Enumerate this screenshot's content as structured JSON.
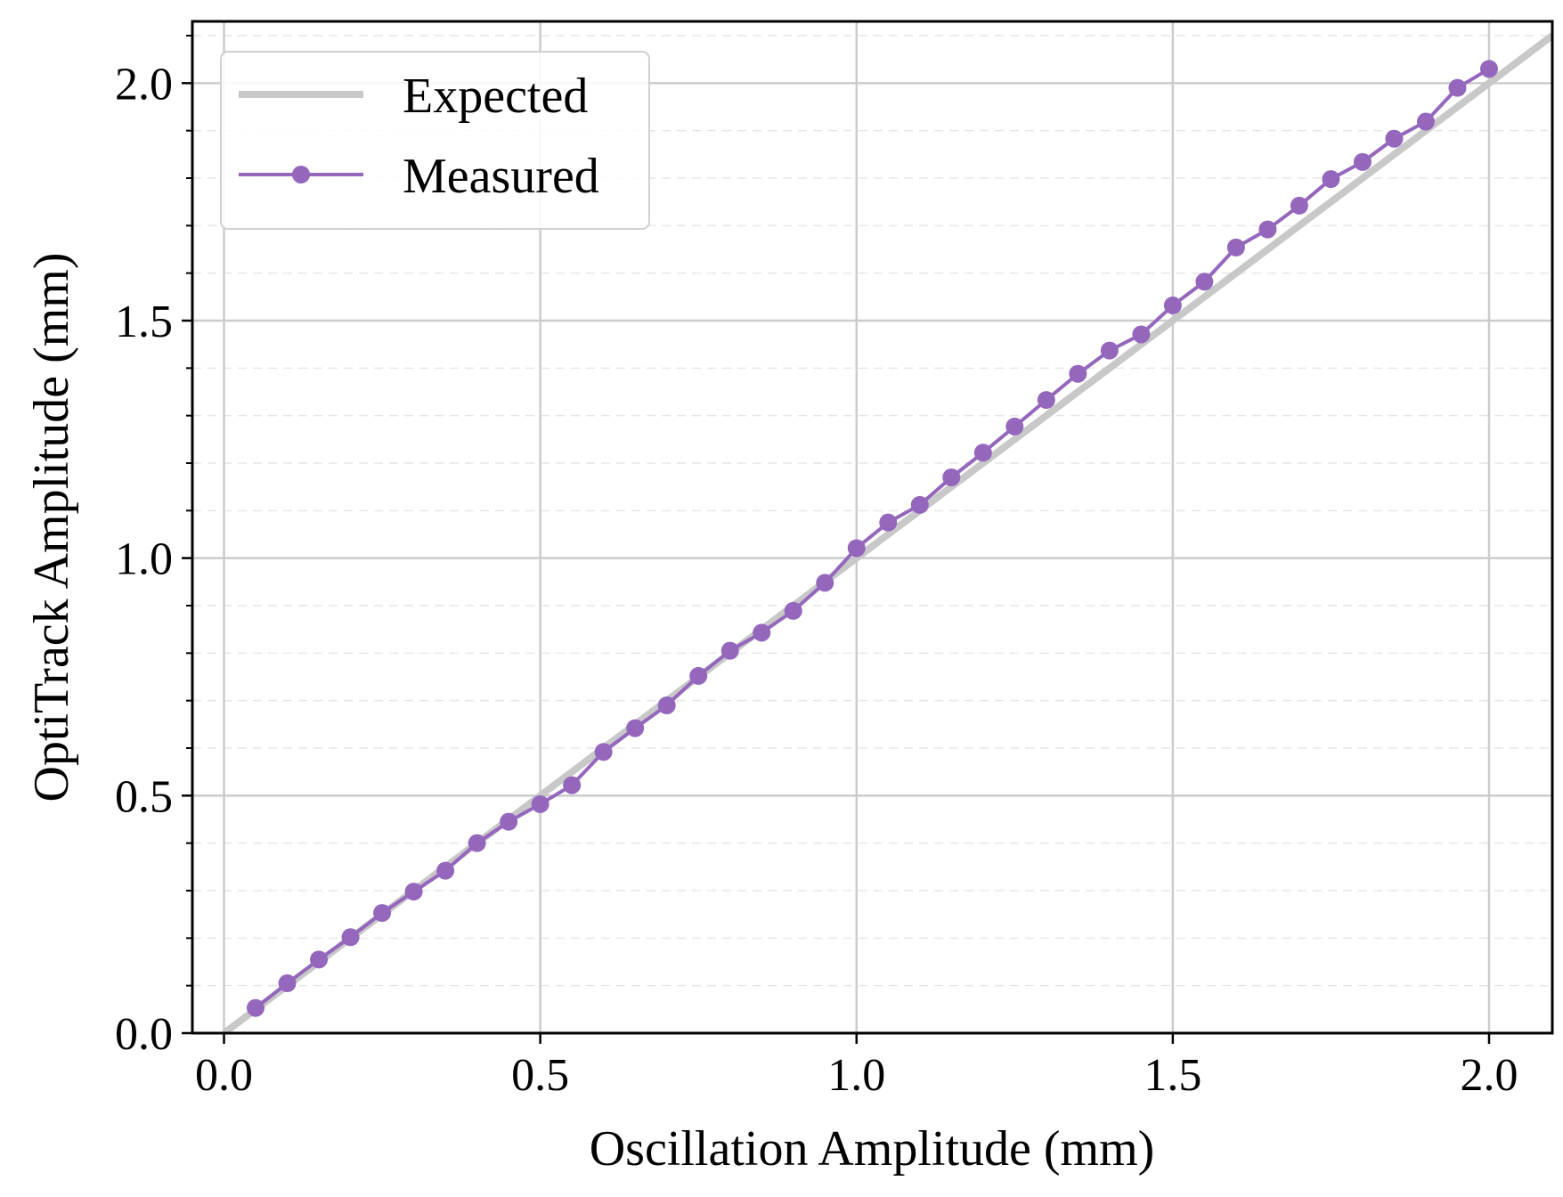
{
  "chart_data": {
    "type": "line",
    "title": "",
    "xlabel": "Oscillation Amplitude (mm)",
    "ylabel": "OptiTrack Amplitude (mm)",
    "xlim": [
      -0.05,
      2.1
    ],
    "ylim": [
      0.0,
      2.13
    ],
    "x_ticks": [
      0.0,
      0.5,
      1.0,
      1.5,
      2.0
    ],
    "x_tick_labels": [
      "0.0",
      "0.5",
      "1.0",
      "1.5",
      "2.0"
    ],
    "y_ticks": [
      0.0,
      0.5,
      1.0,
      1.5,
      2.0
    ],
    "y_tick_labels": [
      "0.0",
      "0.5",
      "1.0",
      "1.5",
      "2.0"
    ],
    "y_minor_ticks": [
      0.1,
      0.2,
      0.3,
      0.4,
      0.6,
      0.7,
      0.8,
      0.9,
      1.1,
      1.2,
      1.3,
      1.4,
      1.6,
      1.7,
      1.8,
      1.9,
      2.1
    ],
    "grid": true,
    "legend_position": "top-left",
    "series": [
      {
        "name": "Expected",
        "color": "#c8c8c8",
        "style": "line",
        "x": [
          0.0,
          2.1
        ],
        "y": [
          0.0,
          2.1
        ]
      },
      {
        "name": "Measured",
        "color": "#9467bd",
        "style": "line-markers",
        "x": [
          0.05,
          0.1,
          0.15,
          0.2,
          0.25,
          0.3,
          0.35,
          0.4,
          0.45,
          0.5,
          0.55,
          0.6,
          0.65,
          0.7,
          0.75,
          0.8,
          0.85,
          0.9,
          0.95,
          1.0,
          1.05,
          1.1,
          1.15,
          1.2,
          1.25,
          1.3,
          1.35,
          1.4,
          1.45,
          1.5,
          1.55,
          1.6,
          1.65,
          1.7,
          1.75,
          1.8,
          1.85,
          1.9,
          1.95,
          2.0
        ],
        "y": [
          0.053,
          0.105,
          0.155,
          0.202,
          0.253,
          0.298,
          0.342,
          0.4,
          0.445,
          0.482,
          0.522,
          0.592,
          0.642,
          0.69,
          0.752,
          0.805,
          0.843,
          0.889,
          0.948,
          1.021,
          1.075,
          1.112,
          1.17,
          1.222,
          1.277,
          1.333,
          1.388,
          1.437,
          1.471,
          1.532,
          1.582,
          1.654,
          1.692,
          1.742,
          1.798,
          1.834,
          1.883,
          1.919,
          1.99,
          2.03
        ]
      }
    ]
  }
}
